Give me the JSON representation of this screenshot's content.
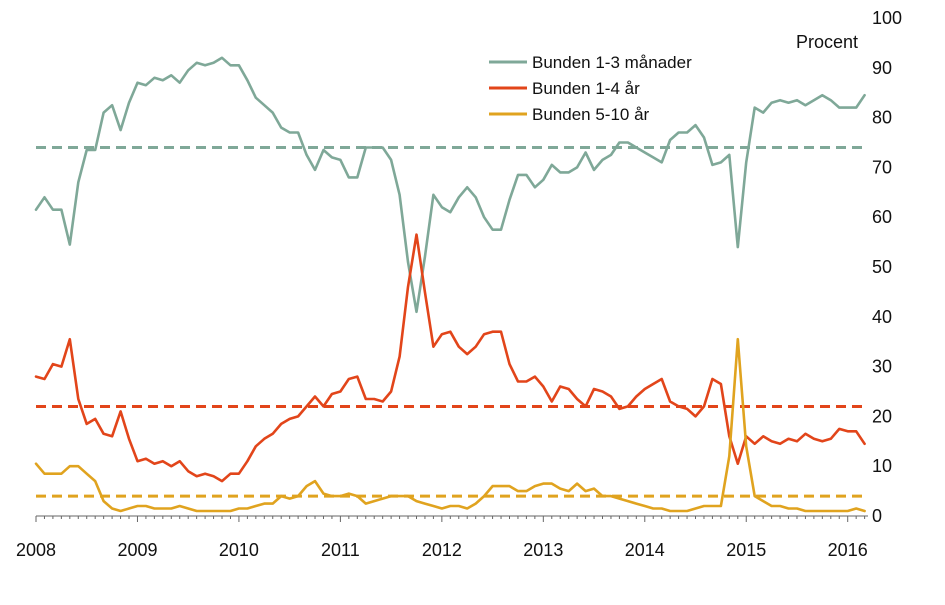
{
  "chart_data": {
    "type": "line",
    "title": "",
    "xlabel": "",
    "ylabel": "Procent",
    "ylim": [
      0,
      100
    ],
    "y_ticks": [
      "0",
      "10",
      "20",
      "30",
      "40",
      "50",
      "60",
      "70",
      "80",
      "90",
      "100"
    ],
    "x_ticks": [
      "2008",
      "2009",
      "2010",
      "2011",
      "2012",
      "2013",
      "2014",
      "2015",
      "2016"
    ],
    "y_axis_position": "right",
    "grid": false,
    "legend_position": "top-right",
    "series": [
      {
        "name": "Bunden 1-3 månader",
        "color": "#7fa898",
        "mean": 74,
        "points": [
          [
            "2008-01",
            61.5
          ],
          [
            "2008-02",
            64
          ],
          [
            "2008-03",
            61.5
          ],
          [
            "2008-04",
            61.5
          ],
          [
            "2008-05",
            54.5
          ],
          [
            "2008-06",
            67
          ],
          [
            "2008-07",
            73.5
          ],
          [
            "2008-08",
            73.5
          ],
          [
            "2008-09",
            81
          ],
          [
            "2008-10",
            82.5
          ],
          [
            "2008-11",
            77.5
          ],
          [
            "2008-12",
            83
          ],
          [
            "2009-01",
            87
          ],
          [
            "2009-02",
            86.5
          ],
          [
            "2009-03",
            88
          ],
          [
            "2009-04",
            87.5
          ],
          [
            "2009-05",
            88.5
          ],
          [
            "2009-06",
            87
          ],
          [
            "2009-07",
            89.5
          ],
          [
            "2009-08",
            91
          ],
          [
            "2009-09",
            90.5
          ],
          [
            "2009-10",
            91
          ],
          [
            "2009-11",
            92
          ],
          [
            "2009-12",
            90.5
          ],
          [
            "2010-01",
            90.5
          ],
          [
            "2010-02",
            87.5
          ],
          [
            "2010-03",
            84
          ],
          [
            "2010-04",
            82.5
          ],
          [
            "2010-05",
            81
          ],
          [
            "2010-06",
            78
          ],
          [
            "2010-07",
            77
          ],
          [
            "2010-08",
            77
          ],
          [
            "2010-09",
            72.5
          ],
          [
            "2010-10",
            69.5
          ],
          [
            "2010-11",
            73.5
          ],
          [
            "2010-12",
            72
          ],
          [
            "2011-01",
            71.5
          ],
          [
            "2011-02",
            68
          ],
          [
            "2011-03",
            68
          ],
          [
            "2011-04",
            74
          ],
          [
            "2011-05",
            74
          ],
          [
            "2011-06",
            74
          ],
          [
            "2011-07",
            71.5
          ],
          [
            "2011-08",
            64.5
          ],
          [
            "2011-09",
            51
          ],
          [
            "2011-10",
            41
          ],
          [
            "2011-11",
            52
          ],
          [
            "2011-12",
            64.5
          ],
          [
            "2012-01",
            62
          ],
          [
            "2012-02",
            61
          ],
          [
            "2012-03",
            64
          ],
          [
            "2012-04",
            66
          ],
          [
            "2012-05",
            64
          ],
          [
            "2012-06",
            60
          ],
          [
            "2012-07",
            57.5
          ],
          [
            "2012-08",
            57.5
          ],
          [
            "2012-09",
            63.5
          ],
          [
            "2012-10",
            68.5
          ],
          [
            "2012-11",
            68.5
          ],
          [
            "2012-12",
            66
          ],
          [
            "2013-01",
            67.5
          ],
          [
            "2013-02",
            70.5
          ],
          [
            "2013-03",
            69
          ],
          [
            "2013-04",
            69
          ],
          [
            "2013-05",
            70
          ],
          [
            "2013-06",
            73
          ],
          [
            "2013-07",
            69.5
          ],
          [
            "2013-08",
            71.5
          ],
          [
            "2013-09",
            72.5
          ],
          [
            "2013-10",
            75
          ],
          [
            "2013-11",
            75
          ],
          [
            "2013-12",
            74
          ],
          [
            "2014-01",
            73
          ],
          [
            "2014-02",
            72
          ],
          [
            "2014-03",
            71
          ],
          [
            "2014-04",
            75.5
          ],
          [
            "2014-05",
            77
          ],
          [
            "2014-06",
            77
          ],
          [
            "2014-07",
            78.5
          ],
          [
            "2014-08",
            76
          ],
          [
            "2014-09",
            70.5
          ],
          [
            "2014-10",
            71
          ],
          [
            "2014-11",
            72.5
          ],
          [
            "2014-12",
            54
          ],
          [
            "2015-01",
            71
          ],
          [
            "2015-02",
            82
          ],
          [
            "2015-03",
            81
          ],
          [
            "2015-04",
            83
          ],
          [
            "2015-05",
            83.5
          ],
          [
            "2015-06",
            83
          ],
          [
            "2015-07",
            83.5
          ],
          [
            "2015-08",
            82.5
          ],
          [
            "2015-09",
            83.5
          ],
          [
            "2015-10",
            84.5
          ],
          [
            "2015-11",
            83.5
          ],
          [
            "2015-12",
            82
          ],
          [
            "2016-01",
            82
          ],
          [
            "2016-02",
            82
          ],
          [
            "2016-03",
            84.5
          ]
        ]
      },
      {
        "name": "Bunden 1-4 år",
        "color": "#e2451a",
        "mean": 22,
        "points": [
          [
            "2008-01",
            28
          ],
          [
            "2008-02",
            27.5
          ],
          [
            "2008-03",
            30.5
          ],
          [
            "2008-04",
            30
          ],
          [
            "2008-05",
            35.5
          ],
          [
            "2008-06",
            23.5
          ],
          [
            "2008-07",
            18.5
          ],
          [
            "2008-08",
            19.5
          ],
          [
            "2008-09",
            16.5
          ],
          [
            "2008-10",
            16
          ],
          [
            "2008-11",
            21
          ],
          [
            "2008-12",
            15.5
          ],
          [
            "2009-01",
            11
          ],
          [
            "2009-02",
            11.5
          ],
          [
            "2009-03",
            10.5
          ],
          [
            "2009-04",
            11
          ],
          [
            "2009-05",
            10
          ],
          [
            "2009-06",
            11
          ],
          [
            "2009-07",
            9
          ],
          [
            "2009-08",
            8
          ],
          [
            "2009-09",
            8.5
          ],
          [
            "2009-10",
            8
          ],
          [
            "2009-11",
            7
          ],
          [
            "2009-12",
            8.5
          ],
          [
            "2010-01",
            8.5
          ],
          [
            "2010-02",
            11
          ],
          [
            "2010-03",
            14
          ],
          [
            "2010-04",
            15.5
          ],
          [
            "2010-05",
            16.5
          ],
          [
            "2010-06",
            18.5
          ],
          [
            "2010-07",
            19.5
          ],
          [
            "2010-08",
            20
          ],
          [
            "2010-09",
            22
          ],
          [
            "2010-10",
            24
          ],
          [
            "2010-11",
            22
          ],
          [
            "2010-12",
            24.5
          ],
          [
            "2011-01",
            25
          ],
          [
            "2011-02",
            27.5
          ],
          [
            "2011-03",
            28
          ],
          [
            "2011-04",
            23.5
          ],
          [
            "2011-05",
            23.5
          ],
          [
            "2011-06",
            23
          ],
          [
            "2011-07",
            25
          ],
          [
            "2011-08",
            32
          ],
          [
            "2011-09",
            46
          ],
          [
            "2011-10",
            56.5
          ],
          [
            "2011-11",
            45
          ],
          [
            "2011-12",
            34
          ],
          [
            "2012-01",
            36.5
          ],
          [
            "2012-02",
            37
          ],
          [
            "2012-03",
            34
          ],
          [
            "2012-04",
            32.5
          ],
          [
            "2012-05",
            34
          ],
          [
            "2012-06",
            36.5
          ],
          [
            "2012-07",
            37
          ],
          [
            "2012-08",
            37
          ],
          [
            "2012-09",
            30.5
          ],
          [
            "2012-10",
            27
          ],
          [
            "2012-11",
            27
          ],
          [
            "2012-12",
            28
          ],
          [
            "2013-01",
            26
          ],
          [
            "2013-02",
            23
          ],
          [
            "2013-03",
            26
          ],
          [
            "2013-04",
            25.5
          ],
          [
            "2013-05",
            23.5
          ],
          [
            "2013-06",
            22
          ],
          [
            "2013-07",
            25.5
          ],
          [
            "2013-08",
            25
          ],
          [
            "2013-09",
            24
          ],
          [
            "2013-10",
            21.5
          ],
          [
            "2013-11",
            22
          ],
          [
            "2013-12",
            24
          ],
          [
            "2014-01",
            25.5
          ],
          [
            "2014-02",
            26.5
          ],
          [
            "2014-03",
            27.5
          ],
          [
            "2014-04",
            23
          ],
          [
            "2014-05",
            22
          ],
          [
            "2014-06",
            21.5
          ],
          [
            "2014-07",
            20
          ],
          [
            "2014-08",
            22
          ],
          [
            "2014-09",
            27.5
          ],
          [
            "2014-10",
            26.5
          ],
          [
            "2014-11",
            16
          ],
          [
            "2014-12",
            10.5
          ],
          [
            "2015-01",
            16
          ],
          [
            "2015-02",
            14.5
          ],
          [
            "2015-03",
            16
          ],
          [
            "2015-04",
            15
          ],
          [
            "2015-05",
            14.5
          ],
          [
            "2015-06",
            15.5
          ],
          [
            "2015-07",
            15
          ],
          [
            "2015-08",
            16.5
          ],
          [
            "2015-09",
            15.5
          ],
          [
            "2015-10",
            15
          ],
          [
            "2015-11",
            15.5
          ],
          [
            "2015-12",
            17.5
          ],
          [
            "2016-01",
            17
          ],
          [
            "2016-02",
            17
          ],
          [
            "2016-03",
            14.5
          ]
        ]
      },
      {
        "name": "Bunden 5-10 år",
        "color": "#e0a31f",
        "mean": 4,
        "points": [
          [
            "2008-01",
            10.5
          ],
          [
            "2008-02",
            8.5
          ],
          [
            "2008-03",
            8.5
          ],
          [
            "2008-04",
            8.5
          ],
          [
            "2008-05",
            10
          ],
          [
            "2008-06",
            10
          ],
          [
            "2008-07",
            8.5
          ],
          [
            "2008-08",
            7
          ],
          [
            "2008-09",
            3
          ],
          [
            "2008-10",
            1.5
          ],
          [
            "2008-11",
            1
          ],
          [
            "2008-12",
            1.5
          ],
          [
            "2009-01",
            2
          ],
          [
            "2009-02",
            2
          ],
          [
            "2009-03",
            1.5
          ],
          [
            "2009-04",
            1.5
          ],
          [
            "2009-05",
            1.5
          ],
          [
            "2009-06",
            2
          ],
          [
            "2009-07",
            1.5
          ],
          [
            "2009-08",
            1
          ],
          [
            "2009-09",
            1
          ],
          [
            "2009-10",
            1
          ],
          [
            "2009-11",
            1
          ],
          [
            "2009-12",
            1
          ],
          [
            "2010-01",
            1.5
          ],
          [
            "2010-02",
            1.5
          ],
          [
            "2010-03",
            2
          ],
          [
            "2010-04",
            2.5
          ],
          [
            "2010-05",
            2.5
          ],
          [
            "2010-06",
            4
          ],
          [
            "2010-07",
            3.5
          ],
          [
            "2010-08",
            4
          ],
          [
            "2010-09",
            6
          ],
          [
            "2010-10",
            7
          ],
          [
            "2010-11",
            4.5
          ],
          [
            "2010-12",
            4
          ],
          [
            "2011-01",
            4
          ],
          [
            "2011-02",
            4.5
          ],
          [
            "2011-03",
            4
          ],
          [
            "2011-04",
            2.5
          ],
          [
            "2011-05",
            3
          ],
          [
            "2011-06",
            3.5
          ],
          [
            "2011-07",
            4
          ],
          [
            "2011-08",
            4
          ],
          [
            "2011-09",
            4
          ],
          [
            "2011-10",
            3
          ],
          [
            "2011-11",
            2.5
          ],
          [
            "2011-12",
            2
          ],
          [
            "2012-01",
            1.5
          ],
          [
            "2012-02",
            2
          ],
          [
            "2012-03",
            2
          ],
          [
            "2012-04",
            1.5
          ],
          [
            "2012-05",
            2.5
          ],
          [
            "2012-06",
            4
          ],
          [
            "2012-07",
            6
          ],
          [
            "2012-08",
            6
          ],
          [
            "2012-09",
            6
          ],
          [
            "2012-10",
            5
          ],
          [
            "2012-11",
            5
          ],
          [
            "2012-12",
            6
          ],
          [
            "2013-01",
            6.5
          ],
          [
            "2013-02",
            6.5
          ],
          [
            "2013-03",
            5.5
          ],
          [
            "2013-04",
            5
          ],
          [
            "2013-05",
            6.5
          ],
          [
            "2013-06",
            5
          ],
          [
            "2013-07",
            5.5
          ],
          [
            "2013-08",
            4
          ],
          [
            "2013-09",
            4
          ],
          [
            "2013-10",
            3.5
          ],
          [
            "2013-11",
            3
          ],
          [
            "2013-12",
            2.5
          ],
          [
            "2014-01",
            2
          ],
          [
            "2014-02",
            1.5
          ],
          [
            "2014-03",
            1.5
          ],
          [
            "2014-04",
            1
          ],
          [
            "2014-05",
            1
          ],
          [
            "2014-06",
            1
          ],
          [
            "2014-07",
            1.5
          ],
          [
            "2014-08",
            2
          ],
          [
            "2014-09",
            2
          ],
          [
            "2014-10",
            2
          ],
          [
            "2014-11",
            12
          ],
          [
            "2014-12",
            35.5
          ],
          [
            "2015-01",
            14
          ],
          [
            "2015-02",
            4
          ],
          [
            "2015-03",
            3
          ],
          [
            "2015-04",
            2
          ],
          [
            "2015-05",
            2
          ],
          [
            "2015-06",
            1.5
          ],
          [
            "2015-07",
            1.5
          ],
          [
            "2015-08",
            1
          ],
          [
            "2015-09",
            1
          ],
          [
            "2015-10",
            1
          ],
          [
            "2015-11",
            1
          ],
          [
            "2015-12",
            1
          ],
          [
            "2016-01",
            1
          ],
          [
            "2016-02",
            1.5
          ],
          [
            "2016-03",
            1
          ]
        ]
      }
    ]
  }
}
